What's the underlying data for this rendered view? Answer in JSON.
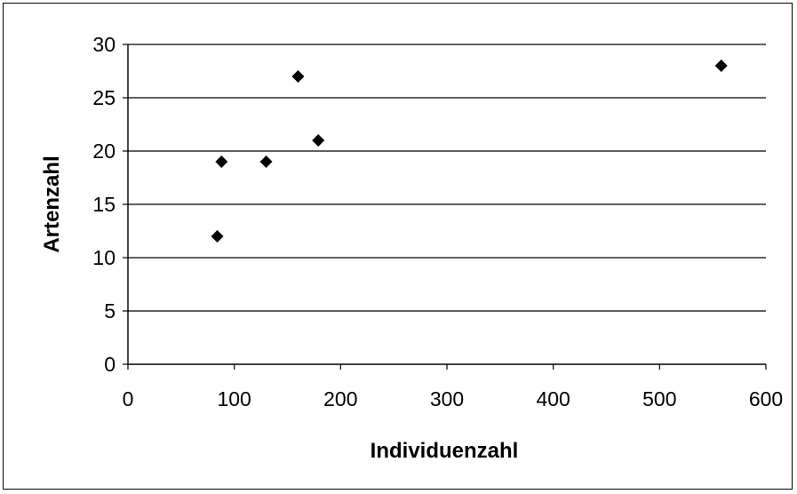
{
  "chart_data": {
    "type": "scatter",
    "title": "",
    "xlabel": "Individuenzahl",
    "ylabel": "Artenzahl",
    "xlim": [
      0,
      600
    ],
    "ylim": [
      0,
      30
    ],
    "xticks": [
      "0",
      "100",
      "200",
      "300",
      "400",
      "500",
      "600"
    ],
    "yticks": [
      "0",
      "5",
      "10",
      "15",
      "20",
      "25",
      "30"
    ],
    "grid": "horizontal",
    "legend": "none",
    "marker": "diamond",
    "marker_color": "#000000",
    "points": [
      {
        "x": 84,
        "y": 12
      },
      {
        "x": 88,
        "y": 19
      },
      {
        "x": 130,
        "y": 19
      },
      {
        "x": 160,
        "y": 27
      },
      {
        "x": 179,
        "y": 21
      },
      {
        "x": 558,
        "y": 28
      }
    ]
  }
}
